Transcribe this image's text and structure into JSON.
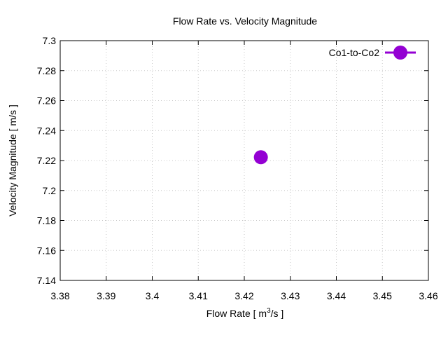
{
  "chart_data": {
    "type": "scatter",
    "title": "Flow Rate vs. Velocity Magnitude",
    "xlabel_main": "Flow Rate [ m",
    "xlabel_sup": "3",
    "xlabel_tail": "/s ]",
    "ylabel": "Velocity Magnitude [ m/s ]",
    "xlim": [
      3.38,
      3.46
    ],
    "ylim": [
      7.14,
      7.3
    ],
    "xticks": [
      "3.38",
      "3.39",
      "3.4",
      "3.41",
      "3.42",
      "3.43",
      "3.44",
      "3.45",
      "3.46"
    ],
    "yticks": [
      "7.14",
      "7.16",
      "7.18",
      "7.2",
      "7.22",
      "7.24",
      "7.26",
      "7.28",
      "7.3"
    ],
    "grid": true,
    "legend_position": "top-right",
    "series": [
      {
        "name": "Co1-to-Co2",
        "color": "#9400d3",
        "points": [
          {
            "x": 3.4236,
            "y": 7.2222
          }
        ]
      }
    ]
  }
}
